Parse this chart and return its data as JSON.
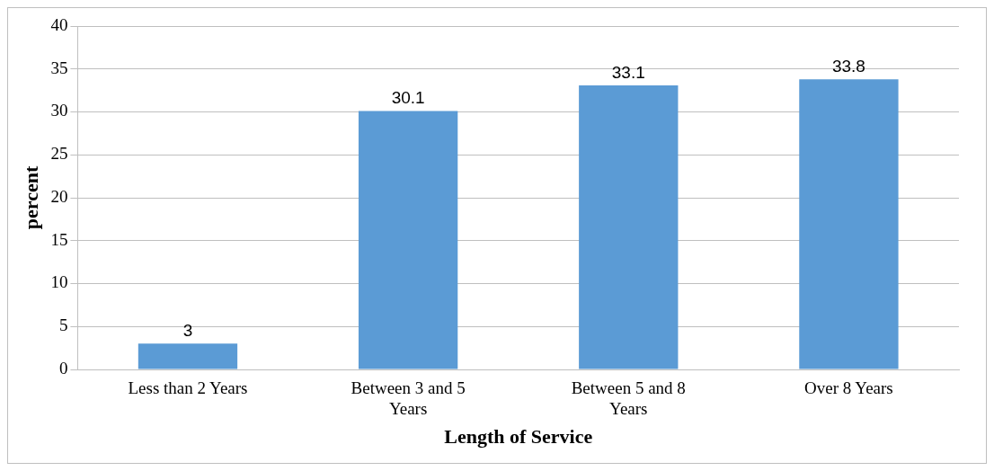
{
  "chart_data": {
    "type": "bar",
    "xlabel": "Length of Service",
    "ylabel": "percent",
    "categories": [
      "Less than 2 Years",
      "Between 3 and 5 Years",
      "Between 5 and 8 Years",
      "Over 8 Years"
    ],
    "values": [
      3,
      30.1,
      33.1,
      33.8
    ],
    "color": "#5b9bd5",
    "ylim": [
      0,
      40
    ],
    "yticks": [
      0,
      5,
      10,
      15,
      20,
      25,
      30,
      35,
      40
    ],
    "grid": "y",
    "data_labels": true,
    "legend": false
  }
}
